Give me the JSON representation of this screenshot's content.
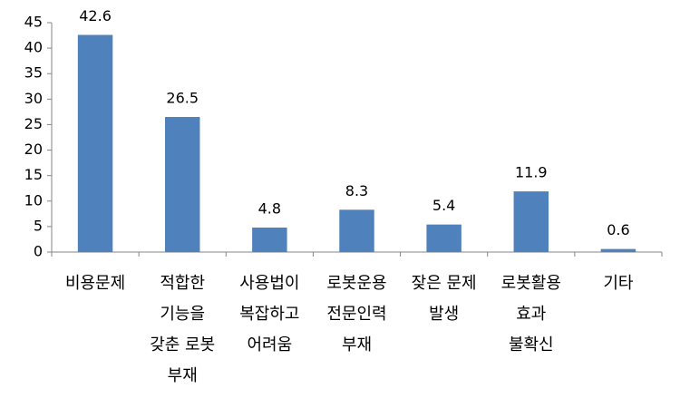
{
  "chart_data": {
    "type": "bar",
    "categories": [
      "비용문제",
      "적합한\n기능을\n갖춘 로봇\n부재",
      "사용법이\n복잡하고\n어려움",
      "로봇운용\n전문인력\n부재",
      "잦은 문제\n발생",
      "로봇활용\n효과\n불확신",
      "기타"
    ],
    "values": [
      42.6,
      26.5,
      4.8,
      8.3,
      5.4,
      11.9,
      0.6
    ],
    "color": "#4f81bd",
    "ylim": [
      0,
      45
    ],
    "yticks": [
      0,
      5,
      10,
      15,
      20,
      25,
      30,
      35,
      40,
      45
    ],
    "grid": false
  }
}
